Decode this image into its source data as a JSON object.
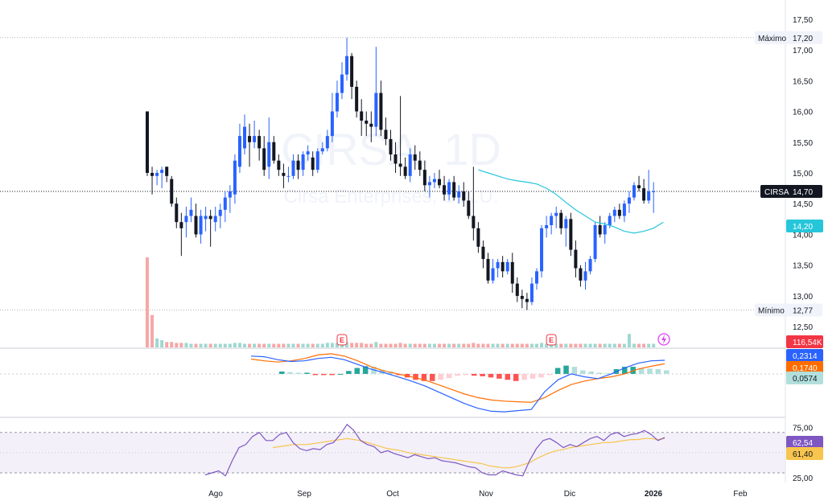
{
  "watermark": {
    "ticker": "CIRSA, 1D",
    "company": "Cirsa Enterprises, S.A.U."
  },
  "colors": {
    "up": "#2962ff",
    "down": "#131722",
    "sma": "#26c6da",
    "macd": "#2962ff",
    "signal": "#ff6d00",
    "rsi": "#7e57c2",
    "rsi_ma": "#f7c44d",
    "volume_down": "#f7a7a7",
    "volume_up": "#9fd8d0",
    "price_tag": "#131722"
  },
  "chart_data": [
    {
      "type": "candlestick",
      "ylim": [
        12.45,
        17.55
      ],
      "y_ticks": [
        "17,50",
        "17,00",
        "16,50",
        "16,00",
        "15,50",
        "15,00",
        "14,50",
        "14,00",
        "13,50",
        "13,00",
        "12,50"
      ],
      "x_ticks": [
        "Ago",
        "Sep",
        "Oct",
        "Nov",
        "Dic",
        "2026",
        "Feb"
      ],
      "max_label": "Máximo",
      "max_value": "17,20",
      "min_label": "Mínimo",
      "min_value": "12,77",
      "last_ticker": "CIRSA",
      "last_value": "14,70",
      "sma_value": "14,20",
      "earnings_marker": "E",
      "candles": [
        [
          16.0,
          16.0,
          14.95,
          15.0
        ],
        [
          15.0,
          15.1,
          14.65,
          14.95
        ],
        [
          14.95,
          15.05,
          14.8,
          15.0
        ],
        [
          15.0,
          15.1,
          14.75,
          15.05
        ],
        [
          15.1,
          15.1,
          14.85,
          14.95
        ],
        [
          14.9,
          14.95,
          14.45,
          14.5
        ],
        [
          14.5,
          14.6,
          14.1,
          14.2
        ],
        [
          14.2,
          14.35,
          13.65,
          14.1
        ],
        [
          14.2,
          14.45,
          13.95,
          14.3
        ],
        [
          14.3,
          14.6,
          14.2,
          14.4
        ],
        [
          14.3,
          14.5,
          13.95,
          14.0
        ],
        [
          14.0,
          14.4,
          13.85,
          14.3
        ],
        [
          14.25,
          14.45,
          14.05,
          14.3
        ],
        [
          14.3,
          14.4,
          13.8,
          14.25
        ],
        [
          14.2,
          14.45,
          14.05,
          14.3
        ],
        [
          14.3,
          14.5,
          14.1,
          14.4
        ],
        [
          14.4,
          14.7,
          14.2,
          14.6
        ],
        [
          14.6,
          14.8,
          14.35,
          14.7
        ],
        [
          14.65,
          15.3,
          14.5,
          15.2
        ],
        [
          15.1,
          15.8,
          15.0,
          15.6
        ],
        [
          15.4,
          15.95,
          15.3,
          15.75
        ],
        [
          15.6,
          15.8,
          15.1,
          15.5
        ],
        [
          15.5,
          15.85,
          15.4,
          15.6
        ],
        [
          15.6,
          15.7,
          15.2,
          15.4
        ],
        [
          15.4,
          15.6,
          14.95,
          15.05
        ],
        [
          15.1,
          15.9,
          14.9,
          15.5
        ],
        [
          15.5,
          15.6,
          15.15,
          15.2
        ],
        [
          15.2,
          15.3,
          14.95,
          15.05
        ],
        [
          15.0,
          15.15,
          14.75,
          14.95
        ],
        [
          14.95,
          15.1,
          14.85,
          14.95
        ],
        [
          14.95,
          15.3,
          14.9,
          15.2
        ],
        [
          15.2,
          15.3,
          14.9,
          15.05
        ],
        [
          15.05,
          15.35,
          14.95,
          15.3
        ],
        [
          15.3,
          15.45,
          15.2,
          15.35
        ],
        [
          15.25,
          15.35,
          14.95,
          15.05
        ],
        [
          15.05,
          15.4,
          15.0,
          15.35
        ],
        [
          15.35,
          15.5,
          15.3,
          15.4
        ],
        [
          15.4,
          15.7,
          15.35,
          15.6
        ],
        [
          15.6,
          16.3,
          15.5,
          16.0
        ],
        [
          16.0,
          16.5,
          15.9,
          16.3
        ],
        [
          16.3,
          16.8,
          16.2,
          16.6
        ],
        [
          16.6,
          17.2,
          16.5,
          16.9
        ],
        [
          16.9,
          16.95,
          16.2,
          16.4
        ],
        [
          16.4,
          16.5,
          15.9,
          16.0
        ],
        [
          16.0,
          16.2,
          15.6,
          15.85
        ],
        [
          15.85,
          16.0,
          15.6,
          15.8
        ],
        [
          15.8,
          16.0,
          15.5,
          15.75
        ],
        [
          15.75,
          17.05,
          15.6,
          16.3
        ],
        [
          16.3,
          16.5,
          15.6,
          15.7
        ],
        [
          15.7,
          15.9,
          15.45,
          15.55
        ],
        [
          15.55,
          15.7,
          15.2,
          15.3
        ],
        [
          15.3,
          15.5,
          15.0,
          15.15
        ],
        [
          15.15,
          16.25,
          14.95,
          15.1
        ],
        [
          15.1,
          15.25,
          14.9,
          14.95
        ],
        [
          14.95,
          15.4,
          14.85,
          15.3
        ],
        [
          15.3,
          15.45,
          15.05,
          15.2
        ],
        [
          15.2,
          15.35,
          14.95,
          15.05
        ],
        [
          15.05,
          15.2,
          14.7,
          14.8
        ],
        [
          14.8,
          14.95,
          14.6,
          14.85
        ],
        [
          14.85,
          15.0,
          14.75,
          14.9
        ],
        [
          14.9,
          15.05,
          14.75,
          14.8
        ],
        [
          14.8,
          14.95,
          14.55,
          14.65
        ],
        [
          14.65,
          14.9,
          14.55,
          14.85
        ],
        [
          14.85,
          14.95,
          14.55,
          14.6
        ],
        [
          14.6,
          14.8,
          14.5,
          14.7
        ],
        [
          14.7,
          14.85,
          14.45,
          14.55
        ],
        [
          14.55,
          14.7,
          14.25,
          14.3
        ],
        [
          14.3,
          15.1,
          13.9,
          14.1
        ],
        [
          14.1,
          14.2,
          13.7,
          13.8
        ],
        [
          13.8,
          13.9,
          13.45,
          13.6
        ],
        [
          13.6,
          13.7,
          13.2,
          13.25
        ],
        [
          13.25,
          13.6,
          13.2,
          13.45
        ],
        [
          13.45,
          13.6,
          13.3,
          13.55
        ],
        [
          13.55,
          13.65,
          13.3,
          13.4
        ],
        [
          13.4,
          13.6,
          13.35,
          13.55
        ],
        [
          13.55,
          13.7,
          13.05,
          13.2
        ],
        [
          13.2,
          13.3,
          12.9,
          13.0
        ],
        [
          13.0,
          13.1,
          12.8,
          12.95
        ],
        [
          12.95,
          13.05,
          12.77,
          12.9
        ],
        [
          12.9,
          13.3,
          12.85,
          13.2
        ],
        [
          13.2,
          13.45,
          13.1,
          13.4
        ],
        [
          13.4,
          14.15,
          13.3,
          14.1
        ],
        [
          14.1,
          14.3,
          13.95,
          14.15
        ],
        [
          14.15,
          14.35,
          14.0,
          14.3
        ],
        [
          14.3,
          14.45,
          14.1,
          14.35
        ],
        [
          14.35,
          14.4,
          14.0,
          14.1
        ],
        [
          14.1,
          14.3,
          13.8,
          14.25
        ],
        [
          14.25,
          14.35,
          13.65,
          13.75
        ],
        [
          13.75,
          13.9,
          13.3,
          13.45
        ],
        [
          13.45,
          13.5,
          13.15,
          13.25
        ],
        [
          13.25,
          13.55,
          13.1,
          13.4
        ],
        [
          13.4,
          13.65,
          13.35,
          13.6
        ],
        [
          13.6,
          14.2,
          13.55,
          14.15
        ],
        [
          14.15,
          14.3,
          13.95,
          14.0
        ],
        [
          14.0,
          14.2,
          13.85,
          14.15
        ],
        [
          14.15,
          14.35,
          14.1,
          14.3
        ],
        [
          14.3,
          14.45,
          14.2,
          14.4
        ],
        [
          14.4,
          14.5,
          14.25,
          14.3
        ],
        [
          14.3,
          14.55,
          14.2,
          14.5
        ],
        [
          14.5,
          14.7,
          14.35,
          14.6
        ],
        [
          14.6,
          14.85,
          14.55,
          14.8
        ],
        [
          14.8,
          14.95,
          14.7,
          14.75
        ],
        [
          14.75,
          14.9,
          14.5,
          14.55
        ],
        [
          14.55,
          15.05,
          14.5,
          14.7
        ],
        [
          14.7,
          14.85,
          14.35,
          14.7
        ]
      ],
      "sma": [
        [
          15.05,
          68
        ],
        [
          15.0,
          70
        ],
        [
          14.95,
          72
        ],
        [
          14.9,
          74
        ],
        [
          14.87,
          76
        ],
        [
          14.85,
          78
        ],
        [
          14.82,
          80
        ],
        [
          14.75,
          82
        ],
        [
          14.65,
          84
        ],
        [
          14.52,
          86
        ],
        [
          14.4,
          88
        ],
        [
          14.3,
          90
        ],
        [
          14.2,
          92
        ],
        [
          14.17,
          94
        ],
        [
          14.12,
          96
        ],
        [
          14.05,
          98
        ],
        [
          14.02,
          100
        ],
        [
          14.05,
          102
        ],
        [
          14.1,
          104
        ],
        [
          14.2,
          106
        ]
      ]
    },
    {
      "type": "bar",
      "name": "volume",
      "value_label": "116,54K",
      "values": [
        1.0,
        0.36,
        0.1,
        0.08,
        0.06,
        0.06,
        0.05,
        0.05,
        0.05,
        0.04,
        0.04,
        0.04,
        0.04,
        0.04,
        0.04,
        0.04,
        0.04,
        0.04,
        0.05,
        0.05,
        0.04,
        0.04,
        0.04,
        0.04,
        0.04,
        0.04,
        0.04,
        0.04,
        0.04,
        0.04,
        0.04,
        0.04,
        0.04,
        0.04,
        0.04,
        0.04,
        0.04,
        0.05,
        0.05,
        0.05,
        0.05,
        0.06,
        0.05,
        0.05,
        0.05,
        0.04,
        0.04,
        0.06,
        0.04,
        0.04,
        0.04,
        0.04,
        0.05,
        0.04,
        0.04,
        0.04,
        0.04,
        0.04,
        0.04,
        0.04,
        0.04,
        0.04,
        0.04,
        0.04,
        0.04,
        0.04,
        0.04,
        0.05,
        0.04,
        0.04,
        0.04,
        0.04,
        0.04,
        0.04,
        0.04,
        0.04,
        0.04,
        0.04,
        0.04,
        0.04,
        0.04,
        0.05,
        0.04,
        0.04,
        0.04,
        0.04,
        0.04,
        0.04,
        0.04,
        0.04,
        0.04,
        0.04,
        0.04,
        0.04,
        0.04,
        0.04,
        0.04,
        0.04,
        0.04,
        0.15,
        0.04,
        0.04,
        0.04,
        0.04,
        0.04
      ]
    },
    {
      "type": "line",
      "name": "MACD",
      "macd_value": "0,2314",
      "signal_value": "0,1740",
      "hist_value": "0,0574",
      "ylim": [
        -0.72,
        0.42
      ],
      "macd": [
        0.3,
        0.29,
        0.24,
        0.21,
        0.22,
        0.26,
        0.28,
        0.24,
        0.16,
        0.08,
        0.02,
        -0.05,
        -0.12,
        -0.2,
        -0.3,
        -0.4,
        -0.5,
        -0.58,
        -0.63,
        -0.64,
        -0.62,
        -0.6,
        -0.3,
        -0.1,
        0.0,
        -0.05,
        -0.08,
        0.0,
        0.1,
        0.18,
        0.22,
        0.23
      ],
      "signal": [
        0.25,
        0.22,
        0.2,
        0.22,
        0.26,
        0.32,
        0.34,
        0.3,
        0.22,
        0.12,
        0.05,
        0.0,
        -0.05,
        -0.1,
        -0.18,
        -0.26,
        -0.34,
        -0.4,
        -0.44,
        -0.46,
        -0.47,
        -0.48,
        -0.4,
        -0.28,
        -0.18,
        -0.12,
        -0.08,
        -0.05,
        0.0,
        0.08,
        0.13,
        0.17
      ],
      "histogram": [
        0.04,
        0.03,
        0.02,
        0.02,
        -0.02,
        -0.02,
        -0.02,
        0.0,
        0.05,
        0.1,
        0.13,
        0.12,
        0.07,
        0.04,
        -0.02,
        -0.06,
        -0.1,
        -0.12,
        -0.12,
        -0.1,
        -0.07,
        -0.03,
        -0.02,
        -0.03,
        -0.04,
        -0.06,
        -0.08,
        -0.1,
        -0.12,
        -0.1,
        -0.08,
        -0.06,
        -0.02,
        0.1,
        0.14,
        0.12,
        0.06,
        0.04,
        0.02,
        0.01,
        0.08,
        0.12,
        0.12,
        0.1,
        0.09,
        0.08,
        0.06
      ]
    },
    {
      "type": "line",
      "name": "RSI",
      "ylim": [
        22,
        81
      ],
      "y_ticks": [
        "75,00",
        "25,00"
      ],
      "rsi_value": "62,54",
      "ma_value": "61,40",
      "band": [
        30,
        70
      ],
      "rsi": [
        28,
        30,
        32,
        27,
        42,
        55,
        58,
        66,
        70,
        62,
        62,
        68,
        70,
        60,
        54,
        52,
        54,
        53,
        58,
        60,
        68,
        78,
        72,
        62,
        58,
        56,
        50,
        52,
        49,
        47,
        45,
        48,
        46,
        44,
        45,
        42,
        41,
        40,
        38,
        36,
        35,
        30,
        28,
        28,
        32,
        30,
        28,
        27,
        42,
        54,
        62,
        64,
        60,
        55,
        58,
        56,
        60,
        64,
        66,
        62,
        68,
        70,
        66,
        68,
        69,
        72,
        68,
        62,
        65
      ],
      "ma": [
        null,
        null,
        null,
        null,
        null,
        null,
        null,
        null,
        null,
        null,
        55,
        56,
        57,
        58,
        58,
        58,
        59,
        60,
        61,
        62,
        63,
        64,
        63,
        62,
        60,
        58,
        56,
        54,
        53,
        52,
        50,
        49,
        48,
        47,
        46,
        45,
        44,
        43,
        42,
        41,
        40,
        39,
        37,
        36,
        35,
        35,
        36,
        38,
        40,
        44,
        47,
        50,
        52,
        53,
        55,
        56,
        57,
        58,
        59,
        60,
        60,
        61,
        62,
        63,
        63,
        64,
        64,
        63,
        64
      ]
    }
  ]
}
